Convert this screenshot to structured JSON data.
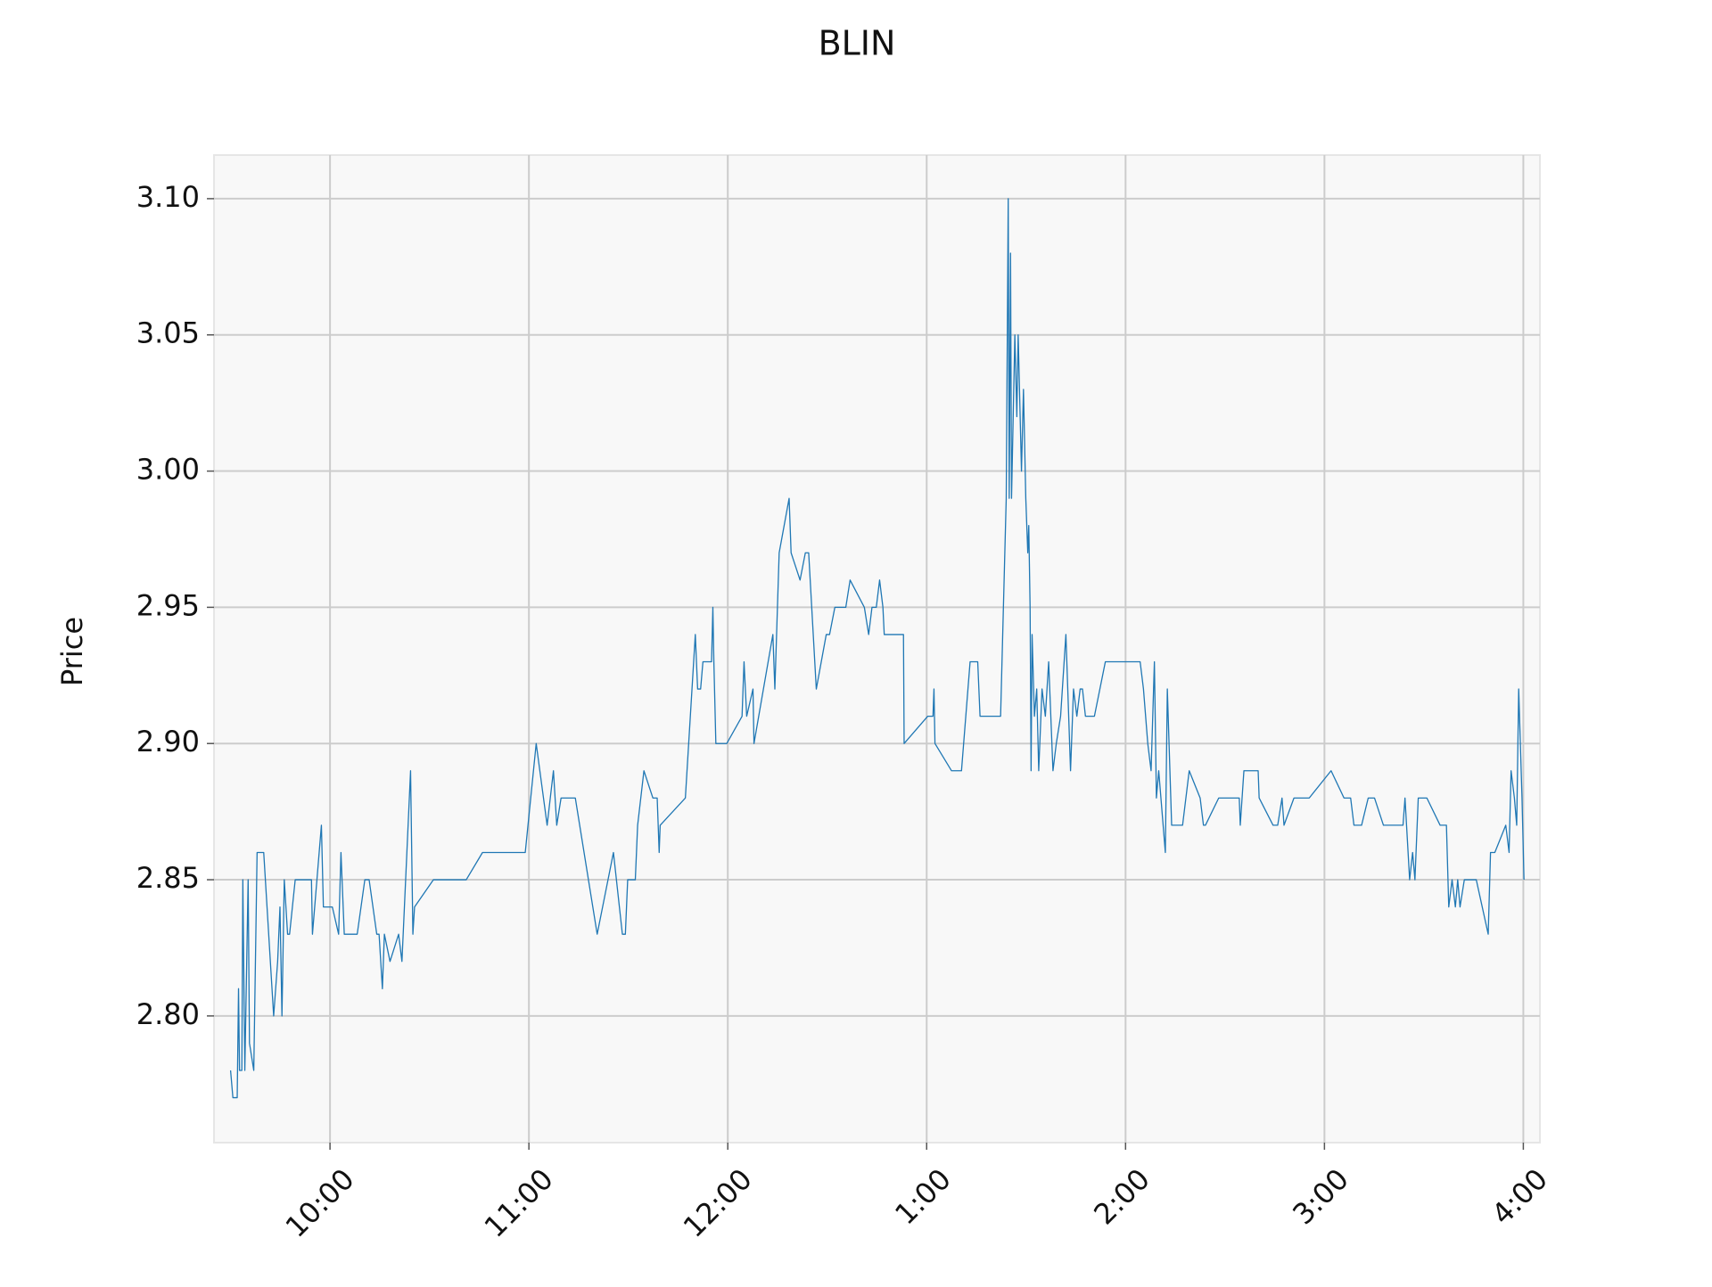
{
  "chart_data": {
    "type": "line",
    "title": "BLIN",
    "y_label": "Price",
    "color": "#1f77b4",
    "grid": true,
    "xlim": [
      565,
      965
    ],
    "xticks": [
      {
        "value": 600,
        "label": "10:00"
      },
      {
        "value": 660,
        "label": "11:00"
      },
      {
        "value": 720,
        "label": "12:00"
      },
      {
        "value": 780,
        "label": "1:00"
      },
      {
        "value": 840,
        "label": "2:00"
      },
      {
        "value": 900,
        "label": "3:00"
      },
      {
        "value": 960,
        "label": "4:00"
      }
    ],
    "ylim": [
      2.7535,
      3.116
    ],
    "yticks": [
      {
        "value": 2.8,
        "label": "2.80"
      },
      2.85,
      {
        "value": 2.9,
        "label": "2.90"
      },
      2.95,
      {
        "value": 3.0,
        "label": "3.00"
      },
      3.05,
      {
        "value": 3.1,
        "label": "3.10"
      }
    ],
    "x": [
      570,
      570.7,
      572,
      572.4,
      572.7,
      573.4,
      573.7,
      574.3,
      575.3,
      575.7,
      577,
      578,
      580,
      583,
      584.2,
      584.9,
      585.5,
      586.2,
      587.2,
      587.8,
      589.5,
      594.4,
      594.7,
      597.4,
      598,
      600.7,
      602.6,
      603.3,
      604.3,
      608.2,
      610.5,
      611.8,
      614.1,
      614.8,
      615.8,
      616.4,
      618.1,
      620.7,
      621.7,
      624.3,
      625,
      625.5,
      631.2,
      641.1,
      646,
      658.9,
      662.2,
      665.5,
      667.4,
      668.4,
      669.7,
      674,
      680.6,
      685.5,
      688.2,
      689.1,
      689.8,
      692.1,
      692.8,
      694.7,
      697.4,
      698.7,
      699.3,
      699.6,
      707.2,
      710.2,
      710.9,
      711.8,
      712.5,
      715.1,
      715.5,
      715.8,
      716.4,
      719.7,
      724.3,
      724.9,
      725.7,
      727.6,
      727.9,
      733.6,
      734.2,
      735.5,
      738.5,
      739.1,
      741.8,
      743.4,
      744.4,
      746.7,
      749.7,
      750.7,
      752.3,
      755.6,
      756.9,
      761.2,
      762.5,
      763.5,
      764.8,
      765.8,
      766.8,
      767.2,
      773,
      773.2,
      780.3,
      781.9,
      782.2,
      782.5,
      787.5,
      790.5,
      793.1,
      795.4,
      796.1,
      802.3,
      804,
      804.6,
      804.9,
      805.3,
      805.6,
      806.6,
      807.2,
      807.6,
      808.6,
      809.2,
      809.9,
      810.5,
      810.8,
      811.2,
      811.5,
      811.8,
      812.5,
      813.2,
      813.8,
      814.8,
      815.8,
      816.8,
      818.1,
      819.1,
      820.4,
      822,
      823.4,
      824.3,
      825.3,
      826.3,
      827,
      827.9,
      830.6,
      833.9,
      838.8,
      844.4,
      845.4,
      846.7,
      847.7,
      848.7,
      849.3,
      850,
      852,
      852.6,
      853.9,
      857.2,
      859.2,
      862.5,
      863.5,
      864.1,
      868.1,
      869.7,
      874.3,
      874.6,
      875.7,
      880,
      880.3,
      884.5,
      885.9,
      887.2,
      887.8,
      890.8,
      895.4,
      902,
      905.9,
      907.9,
      908.9,
      911.2,
      913.2,
      915.1,
      917.8,
      923.7,
      924.3,
      925.7,
      926.6,
      927.3,
      928.3,
      930.9,
      934.9,
      936.8,
      937.5,
      938.5,
      939.5,
      940.2,
      940.9,
      942.2,
      945.8,
      949.4,
      950.1,
      951.4,
      954.7,
      955.7,
      956.3,
      957.3,
      958,
      958.6,
      959.6,
      960.2
    ],
    "values": [
      2.78,
      2.77,
      2.77,
      2.81,
      2.78,
      2.78,
      2.85,
      2.78,
      2.85,
      2.79,
      2.78,
      2.86,
      2.86,
      2.8,
      2.82,
      2.84,
      2.8,
      2.85,
      2.83,
      2.83,
      2.85,
      2.85,
      2.83,
      2.87,
      2.84,
      2.84,
      2.83,
      2.86,
      2.83,
      2.83,
      2.85,
      2.85,
      2.83,
      2.83,
      2.81,
      2.83,
      2.82,
      2.83,
      2.82,
      2.89,
      2.83,
      2.84,
      2.85,
      2.85,
      2.86,
      2.86,
      2.9,
      2.87,
      2.89,
      2.87,
      2.88,
      2.88,
      2.83,
      2.86,
      2.83,
      2.83,
      2.85,
      2.85,
      2.87,
      2.89,
      2.88,
      2.88,
      2.86,
      2.87,
      2.88,
      2.94,
      2.92,
      2.92,
      2.93,
      2.93,
      2.95,
      2.93,
      2.9,
      2.9,
      2.91,
      2.93,
      2.91,
      2.92,
      2.9,
      2.94,
      2.92,
      2.97,
      2.99,
      2.97,
      2.96,
      2.97,
      2.97,
      2.92,
      2.94,
      2.94,
      2.95,
      2.95,
      2.96,
      2.95,
      2.94,
      2.95,
      2.95,
      2.96,
      2.95,
      2.94,
      2.94,
      2.9,
      2.91,
      2.91,
      2.92,
      2.9,
      2.89,
      2.89,
      2.93,
      2.93,
      2.91,
      2.91,
      2.99,
      3.1,
      2.99,
      3.08,
      2.99,
      3.05,
      3.02,
      3.05,
      3.0,
      3.03,
      2.99,
      2.97,
      2.98,
      2.95,
      2.89,
      2.94,
      2.91,
      2.92,
      2.89,
      2.92,
      2.91,
      2.93,
      2.89,
      2.9,
      2.91,
      2.94,
      2.89,
      2.92,
      2.91,
      2.92,
      2.92,
      2.91,
      2.91,
      2.93,
      2.93,
      2.93,
      2.92,
      2.9,
      2.89,
      2.93,
      2.88,
      2.89,
      2.86,
      2.92,
      2.87,
      2.87,
      2.89,
      2.88,
      2.87,
      2.87,
      2.88,
      2.88,
      2.88,
      2.87,
      2.89,
      2.89,
      2.88,
      2.87,
      2.87,
      2.88,
      2.87,
      2.88,
      2.88,
      2.89,
      2.88,
      2.88,
      2.87,
      2.87,
      2.88,
      2.88,
      2.87,
      2.87,
      2.88,
      2.85,
      2.86,
      2.85,
      2.88,
      2.88,
      2.87,
      2.87,
      2.84,
      2.85,
      2.84,
      2.85,
      2.84,
      2.85,
      2.85,
      2.83,
      2.86,
      2.86,
      2.87,
      2.86,
      2.89,
      2.88,
      2.87,
      2.92,
      2.88,
      2.85
    ]
  }
}
